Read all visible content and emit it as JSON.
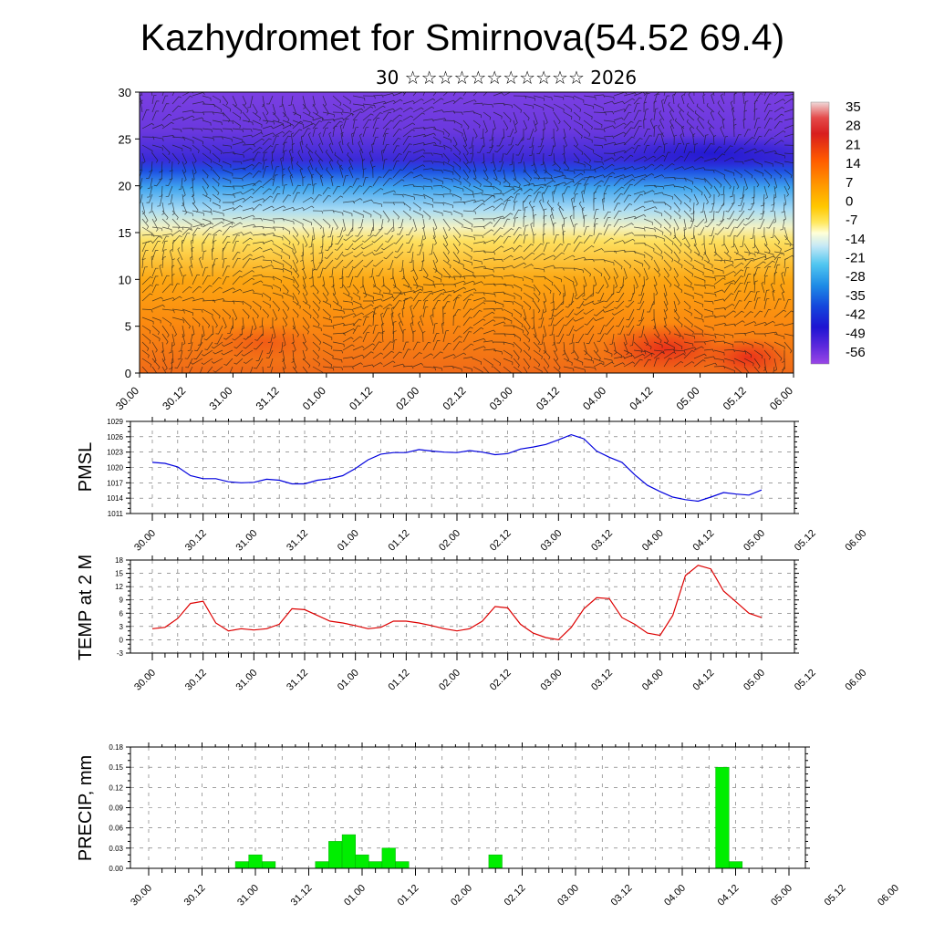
{
  "header": {
    "title": "Kazhydromet for Smirnova(54.52 69.4)",
    "subtitle": "30 ☆☆☆☆☆☆☆☆☆☆☆ 2026"
  },
  "colors": {
    "pmsl_line": "#0000dd",
    "temp_line": "#dd0000",
    "precip_bar": "#00ee00",
    "precip_edge": "#00aa00"
  },
  "chart_data": [
    {
      "type": "heatmap",
      "name": "cross-section",
      "description_of_fields": "temperature shading with wind barbs; y axis 0-30",
      "x_tick_labels": [
        "30.00",
        "30.12",
        "31.00",
        "31.12",
        "01.00",
        "01.12",
        "02.00",
        "02.12",
        "03.00",
        "03.12",
        "04.00",
        "04.12",
        "05.00",
        "05.12",
        "06.00"
      ],
      "ylim": [
        0,
        30
      ],
      "y_ticks": [
        0,
        5,
        10,
        15,
        20,
        25,
        30
      ],
      "colorbar_labels": [
        "35",
        "28",
        "21",
        "14",
        "7",
        "0",
        "-7",
        "-14",
        "-21",
        "-28",
        "-35",
        "-42",
        "-49",
        "-56"
      ],
      "colorbar_stops": [
        "#f0f0f0",
        "#dc1e1e",
        "#ff5a00",
        "#ff9600",
        "#ffc800",
        "#ffe650",
        "#ffffd2",
        "#bee6f5",
        "#50c8f0",
        "#1e8ce6",
        "#1446dc",
        "#1e14d2",
        "#6428dc",
        "#a046e6"
      ]
    },
    {
      "type": "line",
      "ylabel": "PMSL",
      "ylim": [
        1011,
        1029
      ],
      "y_ticks": [
        1011,
        1014,
        1017,
        1020,
        1023,
        1026,
        1029
      ],
      "x_tick_labels": [
        "30.00",
        "30.12",
        "31.00",
        "31.12",
        "01.00",
        "01.12",
        "02.00",
        "02.12",
        "03.00",
        "03.12",
        "04.00",
        "04.12",
        "05.00",
        "05.12",
        "06.00"
      ],
      "x_units": "hours since 30.00",
      "x": [
        0,
        3,
        6,
        9,
        12,
        15,
        18,
        21,
        24,
        27,
        30,
        33,
        36,
        39,
        42,
        45,
        48,
        51,
        54,
        57,
        60,
        63,
        66,
        69,
        72,
        75,
        78,
        81,
        84,
        87,
        90,
        93,
        96,
        99,
        102,
        105,
        108,
        111,
        114,
        117,
        120,
        123,
        126,
        129,
        132,
        135,
        138,
        141,
        144
      ],
      "series": [
        {
          "values": [
            1021.0,
            1020.8,
            1020.1,
            1018.4,
            1017.8,
            1017.8,
            1017.2,
            1017.0,
            1017.1,
            1017.7,
            1017.5,
            1016.8,
            1016.8,
            1017.5,
            1017.8,
            1018.4,
            1019.8,
            1021.5,
            1022.6,
            1022.9,
            1022.9,
            1023.5,
            1023.2,
            1023.0,
            1022.9,
            1023.3,
            1023.0,
            1022.5,
            1022.7,
            1023.6,
            1024.0,
            1024.5,
            1025.4,
            1026.4,
            1025.6,
            1023.2,
            1022.0,
            1021.0,
            1018.6,
            1016.5,
            1015.3,
            1014.2,
            1013.7,
            1013.4,
            1014.2,
            1015.1,
            1014.8,
            1014.6,
            1015.6
          ]
        }
      ]
    },
    {
      "type": "line",
      "ylabel": "TEMP at 2 M",
      "ylim": [
        -3,
        18
      ],
      "y_ticks": [
        -3,
        0,
        3,
        6,
        9,
        12,
        15,
        18
      ],
      "x_tick_labels": [
        "30.00",
        "30.12",
        "31.00",
        "31.12",
        "01.00",
        "01.12",
        "02.00",
        "02.12",
        "03.00",
        "03.12",
        "04.00",
        "04.12",
        "05.00",
        "05.12",
        "06.00"
      ],
      "x_units": "hours since 30.00",
      "x": [
        0,
        3,
        6,
        9,
        12,
        15,
        18,
        21,
        24,
        27,
        30,
        33,
        36,
        39,
        42,
        45,
        48,
        51,
        54,
        57,
        60,
        63,
        66,
        69,
        72,
        75,
        78,
        81,
        84,
        87,
        90,
        93,
        96,
        99,
        102,
        105,
        108,
        111,
        114,
        117,
        120,
        123,
        126,
        129,
        132,
        135,
        138,
        141,
        144
      ],
      "series": [
        {
          "values": [
            2.5,
            2.8,
            4.8,
            8.2,
            8.7,
            3.8,
            2.0,
            2.5,
            2.2,
            2.5,
            3.5,
            7.0,
            6.8,
            5.5,
            4.2,
            3.8,
            3.2,
            2.5,
            2.8,
            4.2,
            4.2,
            3.8,
            3.2,
            2.5,
            2.0,
            2.5,
            4.2,
            7.5,
            7.2,
            3.5,
            1.5,
            0.5,
            0.0,
            2.8,
            7.0,
            9.5,
            9.3,
            5.0,
            3.5,
            1.5,
            1.0,
            5.5,
            14.5,
            16.8,
            16.0,
            11.0,
            8.5,
            6.0,
            5.0
          ]
        }
      ]
    },
    {
      "type": "bar",
      "ylabel": "PRECIP, mm",
      "ylim": [
        0,
        0.18
      ],
      "y_ticks": [
        "0.00",
        "0.03",
        "0.06",
        "0.09",
        "0.12",
        "0.15",
        "0.18"
      ],
      "x_tick_labels": [
        "30.00",
        "30.12",
        "31.00",
        "31.12",
        "01.00",
        "01.12",
        "02.00",
        "02.12",
        "03.00",
        "03.12",
        "04.00",
        "04.12",
        "05.00",
        "05.12",
        "06.00"
      ],
      "x_units": "hours since 30.00 (bar centers)",
      "x": [
        0,
        3,
        6,
        9,
        12,
        15,
        18,
        21,
        24,
        27,
        30,
        33,
        36,
        39,
        42,
        45,
        48,
        51,
        54,
        57,
        60,
        63,
        66,
        69,
        72,
        75,
        78,
        81,
        84,
        87,
        90,
        93,
        96,
        99,
        102,
        105,
        108,
        111,
        114,
        117,
        120,
        123,
        126,
        129,
        132,
        135,
        138,
        141,
        144
      ],
      "values": [
        0,
        0,
        0,
        0,
        0,
        0,
        0,
        0.01,
        0.02,
        0.01,
        0,
        0,
        0,
        0.01,
        0.04,
        0.05,
        0.02,
        0.01,
        0.03,
        0.01,
        0,
        0,
        0,
        0,
        0,
        0,
        0.02,
        0,
        0,
        0,
        0,
        0,
        0,
        0,
        0,
        0,
        0,
        0,
        0,
        0,
        0,
        0,
        0,
        0.15,
        0.01,
        0,
        0,
        0,
        0
      ]
    }
  ]
}
